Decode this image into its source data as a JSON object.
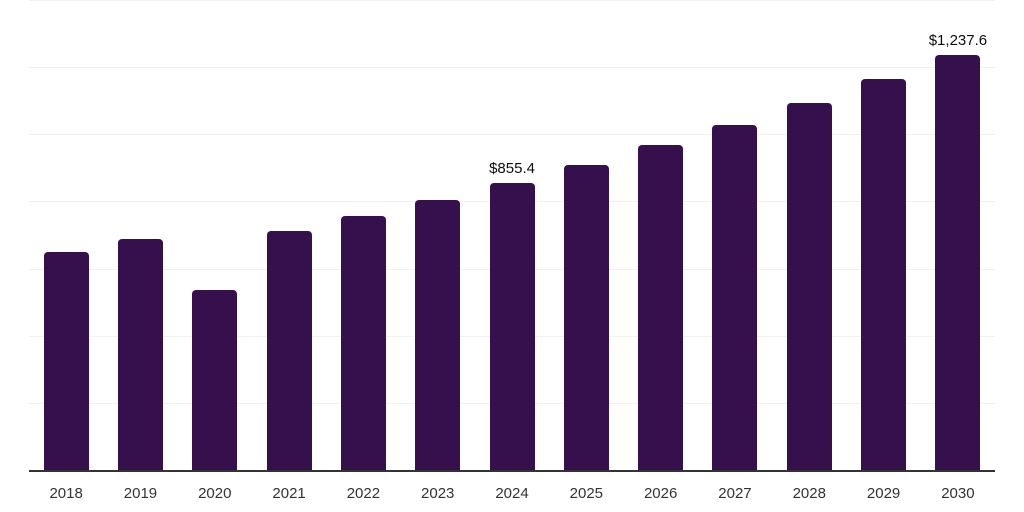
{
  "chart_data": {
    "type": "bar",
    "title": "",
    "xlabel": "",
    "ylabel": "",
    "categories": [
      "2018",
      "2019",
      "2020",
      "2021",
      "2022",
      "2023",
      "2024",
      "2025",
      "2026",
      "2027",
      "2028",
      "2029",
      "2030"
    ],
    "values": [
      648.6,
      689.4,
      536.3,
      712.2,
      757.0,
      805.5,
      855.4,
      909.7,
      967.4,
      1028.8,
      1094.1,
      1163.5,
      1237.6
    ],
    "data_labels": [
      null,
      null,
      null,
      null,
      null,
      null,
      "$855.4",
      null,
      null,
      null,
      null,
      null,
      "$1,237.6"
    ],
    "ylim": [
      0,
      1400
    ],
    "grid_step": 200,
    "grid": "horizontal-only",
    "legend": "none",
    "y_axis_labels_visible": false,
    "colors": {
      "bar": "#36104c",
      "axis_line": "#333333",
      "gridline": "#f2f2f2",
      "data_label": "#0d0d0d",
      "tick_label": "#333333",
      "background": "#ffffff"
    }
  }
}
